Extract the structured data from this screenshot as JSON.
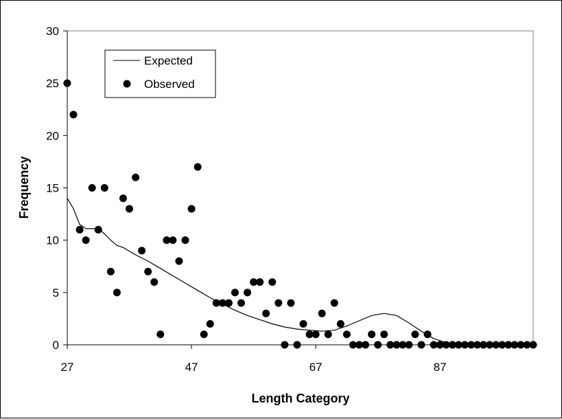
{
  "chart_data": {
    "type": "scatter",
    "xlabel": "Length Category",
    "ylabel": "Frequency",
    "xlim": [
      27,
      102
    ],
    "ylim": [
      0,
      30
    ],
    "x_ticks": [
      27,
      47,
      67,
      87
    ],
    "x_tick_labels": [
      "27",
      "47",
      "67",
      "87"
    ],
    "y_ticks": [
      0,
      5,
      10,
      15,
      20,
      25,
      30
    ],
    "y_tick_labels": [
      "0",
      "5",
      "10",
      "15",
      "20",
      "25",
      "30"
    ],
    "grid": false,
    "legend_position": "top-left",
    "series": [
      {
        "name": "Expected",
        "type": "line",
        "color": "#000000",
        "x": [
          27,
          28,
          29,
          30,
          31,
          32,
          33,
          34,
          35,
          36,
          38,
          40,
          42,
          44,
          46,
          48,
          50,
          52,
          54,
          56,
          58,
          60,
          62,
          64,
          66,
          68,
          70,
          72,
          74,
          76,
          78,
          80,
          82,
          84,
          86,
          88,
          90,
          92,
          94,
          96,
          98,
          100,
          102
        ],
        "values": [
          14,
          13,
          11.5,
          11.1,
          11.1,
          11.1,
          10.6,
          10,
          9.5,
          9.3,
          8.6,
          8,
          7.3,
          6.6,
          5.9,
          5.2,
          4.5,
          3.9,
          3.3,
          2.8,
          2.4,
          2.0,
          1.7,
          1.5,
          1.4,
          1.3,
          1.4,
          1.8,
          2.3,
          2.8,
          3.0,
          2.8,
          2.1,
          1.3,
          0.6,
          0.2,
          0.05,
          0,
          0,
          0,
          0,
          0,
          0
        ]
      },
      {
        "name": "Observed",
        "type": "scatter",
        "color": "#000000",
        "x": [
          27,
          28,
          29,
          30,
          31,
          32,
          33,
          34,
          35,
          36,
          37,
          38,
          39,
          40,
          41,
          42,
          43,
          44,
          45,
          46,
          47,
          48,
          49,
          50,
          51,
          52,
          53,
          54,
          55,
          56,
          57,
          58,
          59,
          60,
          61,
          62,
          63,
          64,
          65,
          66,
          67,
          68,
          69,
          70,
          71,
          72,
          73,
          74,
          75,
          76,
          77,
          78,
          79,
          80,
          81,
          82,
          83,
          84,
          85,
          86,
          87,
          88,
          89,
          90,
          91,
          92,
          93,
          94,
          95,
          96,
          97,
          98,
          99,
          100,
          101,
          102
        ],
        "values": [
          25,
          22,
          11,
          10,
          15,
          11,
          15,
          7,
          5,
          14,
          13,
          16,
          9,
          7,
          6,
          1,
          10,
          10,
          8,
          10,
          13,
          17,
          1,
          2,
          4,
          4,
          4,
          5,
          4,
          5,
          6,
          6,
          3,
          6,
          4,
          0,
          4,
          0,
          2,
          1,
          1,
          3,
          1,
          4,
          2,
          1,
          0,
          0,
          0,
          1,
          0,
          1,
          0,
          0,
          0,
          0,
          1,
          0,
          1,
          0,
          0,
          0,
          0,
          0,
          0,
          0,
          0,
          0,
          0,
          0,
          0,
          0,
          0,
          0,
          0,
          0
        ]
      }
    ]
  }
}
